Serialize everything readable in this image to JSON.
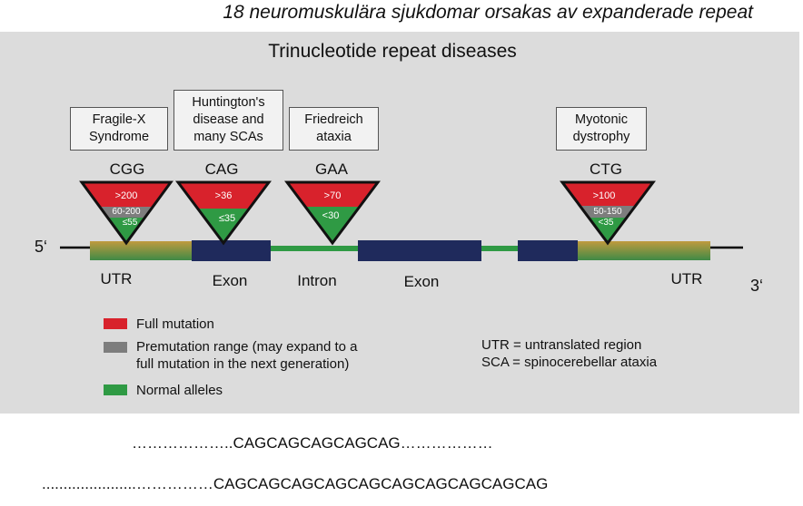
{
  "top_title": "18 neuromuskulära sjukdomar orsakas av expanderade repeat",
  "panel_title": "Trinucleotide repeat diseases",
  "diseases": [
    {
      "box_label": "Fragile-X\nSyndrome",
      "codon": "CGG",
      "full": ">200",
      "premutation": "60-200",
      "normal": "≤55"
    },
    {
      "box_label": "Huntington's\ndisease and\nmany SCAs",
      "codon": "CAG",
      "full": ">36",
      "normal": "≤35"
    },
    {
      "box_label": "Friedreich\nataxia",
      "codon": "GAA",
      "full": ">70",
      "normal": "<30"
    },
    {
      "box_label": "Myotonic\ndystrophy",
      "codon": "CTG",
      "full": ">100",
      "premutation": "50-150",
      "normal": "<35"
    }
  ],
  "gene": {
    "five_prime": "5‘",
    "three_prime": "3‘",
    "regions": [
      "UTR",
      "Exon",
      "Intron",
      "Exon",
      "UTR"
    ]
  },
  "legend": [
    {
      "label": "Full mutation",
      "color": "#d8222c"
    },
    {
      "label": "Premutation range (may expand to a\nfull mutation in the next generation)",
      "color": "#7d7d7d"
    },
    {
      "label": "Normal alleles",
      "color": "#2f9a44"
    }
  ],
  "notes": [
    "UTR = untranslated region",
    "SCA = spinocerebellar ataxia"
  ],
  "sequences": [
    "………………..CAGCAGCAGCAGCAG………………",
    "......................……………CAGCAGCAGCAGCAGCAGCAGCAGCAGCAG"
  ],
  "colors": {
    "panel_bg": "#dcdcdc",
    "exon": "#1f2a5c",
    "intron": "#2f9a44",
    "utr_top": "#b8913a",
    "utr_bottom": "#3f8a46",
    "triangle_outline": "#111111"
  }
}
